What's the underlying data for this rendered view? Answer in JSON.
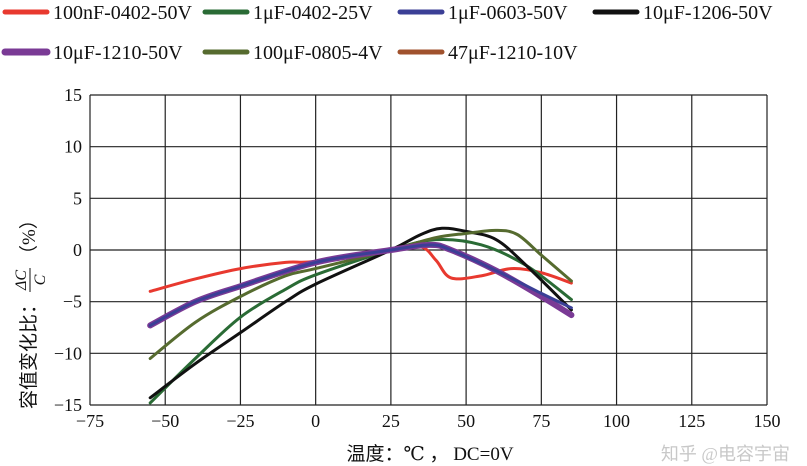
{
  "chart_data": {
    "type": "line",
    "title": "",
    "xlabel": "温度：℃ ， DC=0V",
    "ylabel_fraction": {
      "prefix": "容值变化比：",
      "numerator": "ΔC",
      "denominator": "C",
      "suffix": "（%）"
    },
    "xlim": [
      -75,
      150
    ],
    "ylim": [
      -15,
      15
    ],
    "xticks": [
      -75,
      -50,
      -25,
      0,
      25,
      50,
      75,
      100,
      125,
      150
    ],
    "yticks": [
      -15,
      -10,
      -5,
      0,
      5,
      10,
      15
    ],
    "grid": true,
    "legend_position": "top",
    "series": [
      {
        "name": "100nF-0402-50V",
        "color": "#e8392f",
        "width": 3,
        "x": [
          -55,
          -40,
          -25,
          -10,
          0,
          25,
          35,
          40,
          45,
          55,
          65,
          75,
          85
        ],
        "y": [
          -4,
          -2.8,
          -1.8,
          -1.2,
          -1.1,
          0,
          0.3,
          -1,
          -2.7,
          -2.5,
          -1.8,
          -2.2,
          -3.2
        ]
      },
      {
        "name": "1μF-0402-25V",
        "color": "#2a6b35",
        "width": 3,
        "x": [
          -55,
          -40,
          -25,
          -10,
          0,
          25,
          40,
          55,
          70,
          85
        ],
        "y": [
          -14.8,
          -10.5,
          -6.5,
          -3.8,
          -2.4,
          0,
          1,
          0.5,
          -1.5,
          -4.8
        ]
      },
      {
        "name": "1μF-0603-50V",
        "color": "#3b3f96",
        "width": 3,
        "x": [
          -55,
          -40,
          -25,
          0,
          25,
          38,
          45,
          60,
          75,
          85
        ],
        "y": [
          -7.3,
          -5,
          -3.5,
          -1.2,
          0,
          0.5,
          0,
          -2,
          -4.2,
          -5.6
        ]
      },
      {
        "name": "10μF-1206-50V",
        "color": "#111111",
        "width": 3,
        "x": [
          -55,
          -40,
          -25,
          -10,
          0,
          25,
          35,
          42,
          50,
          60,
          70,
          85
        ],
        "y": [
          -14.3,
          -11,
          -8,
          -5,
          -3.3,
          0,
          1.5,
          2.1,
          1.8,
          1,
          -1.5,
          -5.8
        ]
      },
      {
        "name": "10μF-1210-50V",
        "color": "#7a3a95",
        "width": 6,
        "x": [
          -55,
          -40,
          -25,
          0,
          25,
          38,
          45,
          60,
          75,
          85
        ],
        "y": [
          -7.3,
          -5,
          -3.5,
          -1.2,
          0,
          0.5,
          0,
          -2,
          -4.5,
          -6.3
        ]
      },
      {
        "name": "100μF-0805-4V",
        "color": "#566b2f",
        "width": 3,
        "x": [
          -55,
          -40,
          -25,
          -10,
          0,
          25,
          40,
          50,
          60,
          67,
          75,
          85
        ],
        "y": [
          -10.5,
          -7,
          -4.5,
          -2.5,
          -1.8,
          0,
          1.2,
          1.6,
          1.9,
          1.5,
          -0.5,
          -3
        ]
      },
      {
        "name": "47μF-1210-10V",
        "color": "#a0522d",
        "width": 3,
        "x": [],
        "y": []
      }
    ]
  },
  "watermark": "知乎 @电容宇宙"
}
